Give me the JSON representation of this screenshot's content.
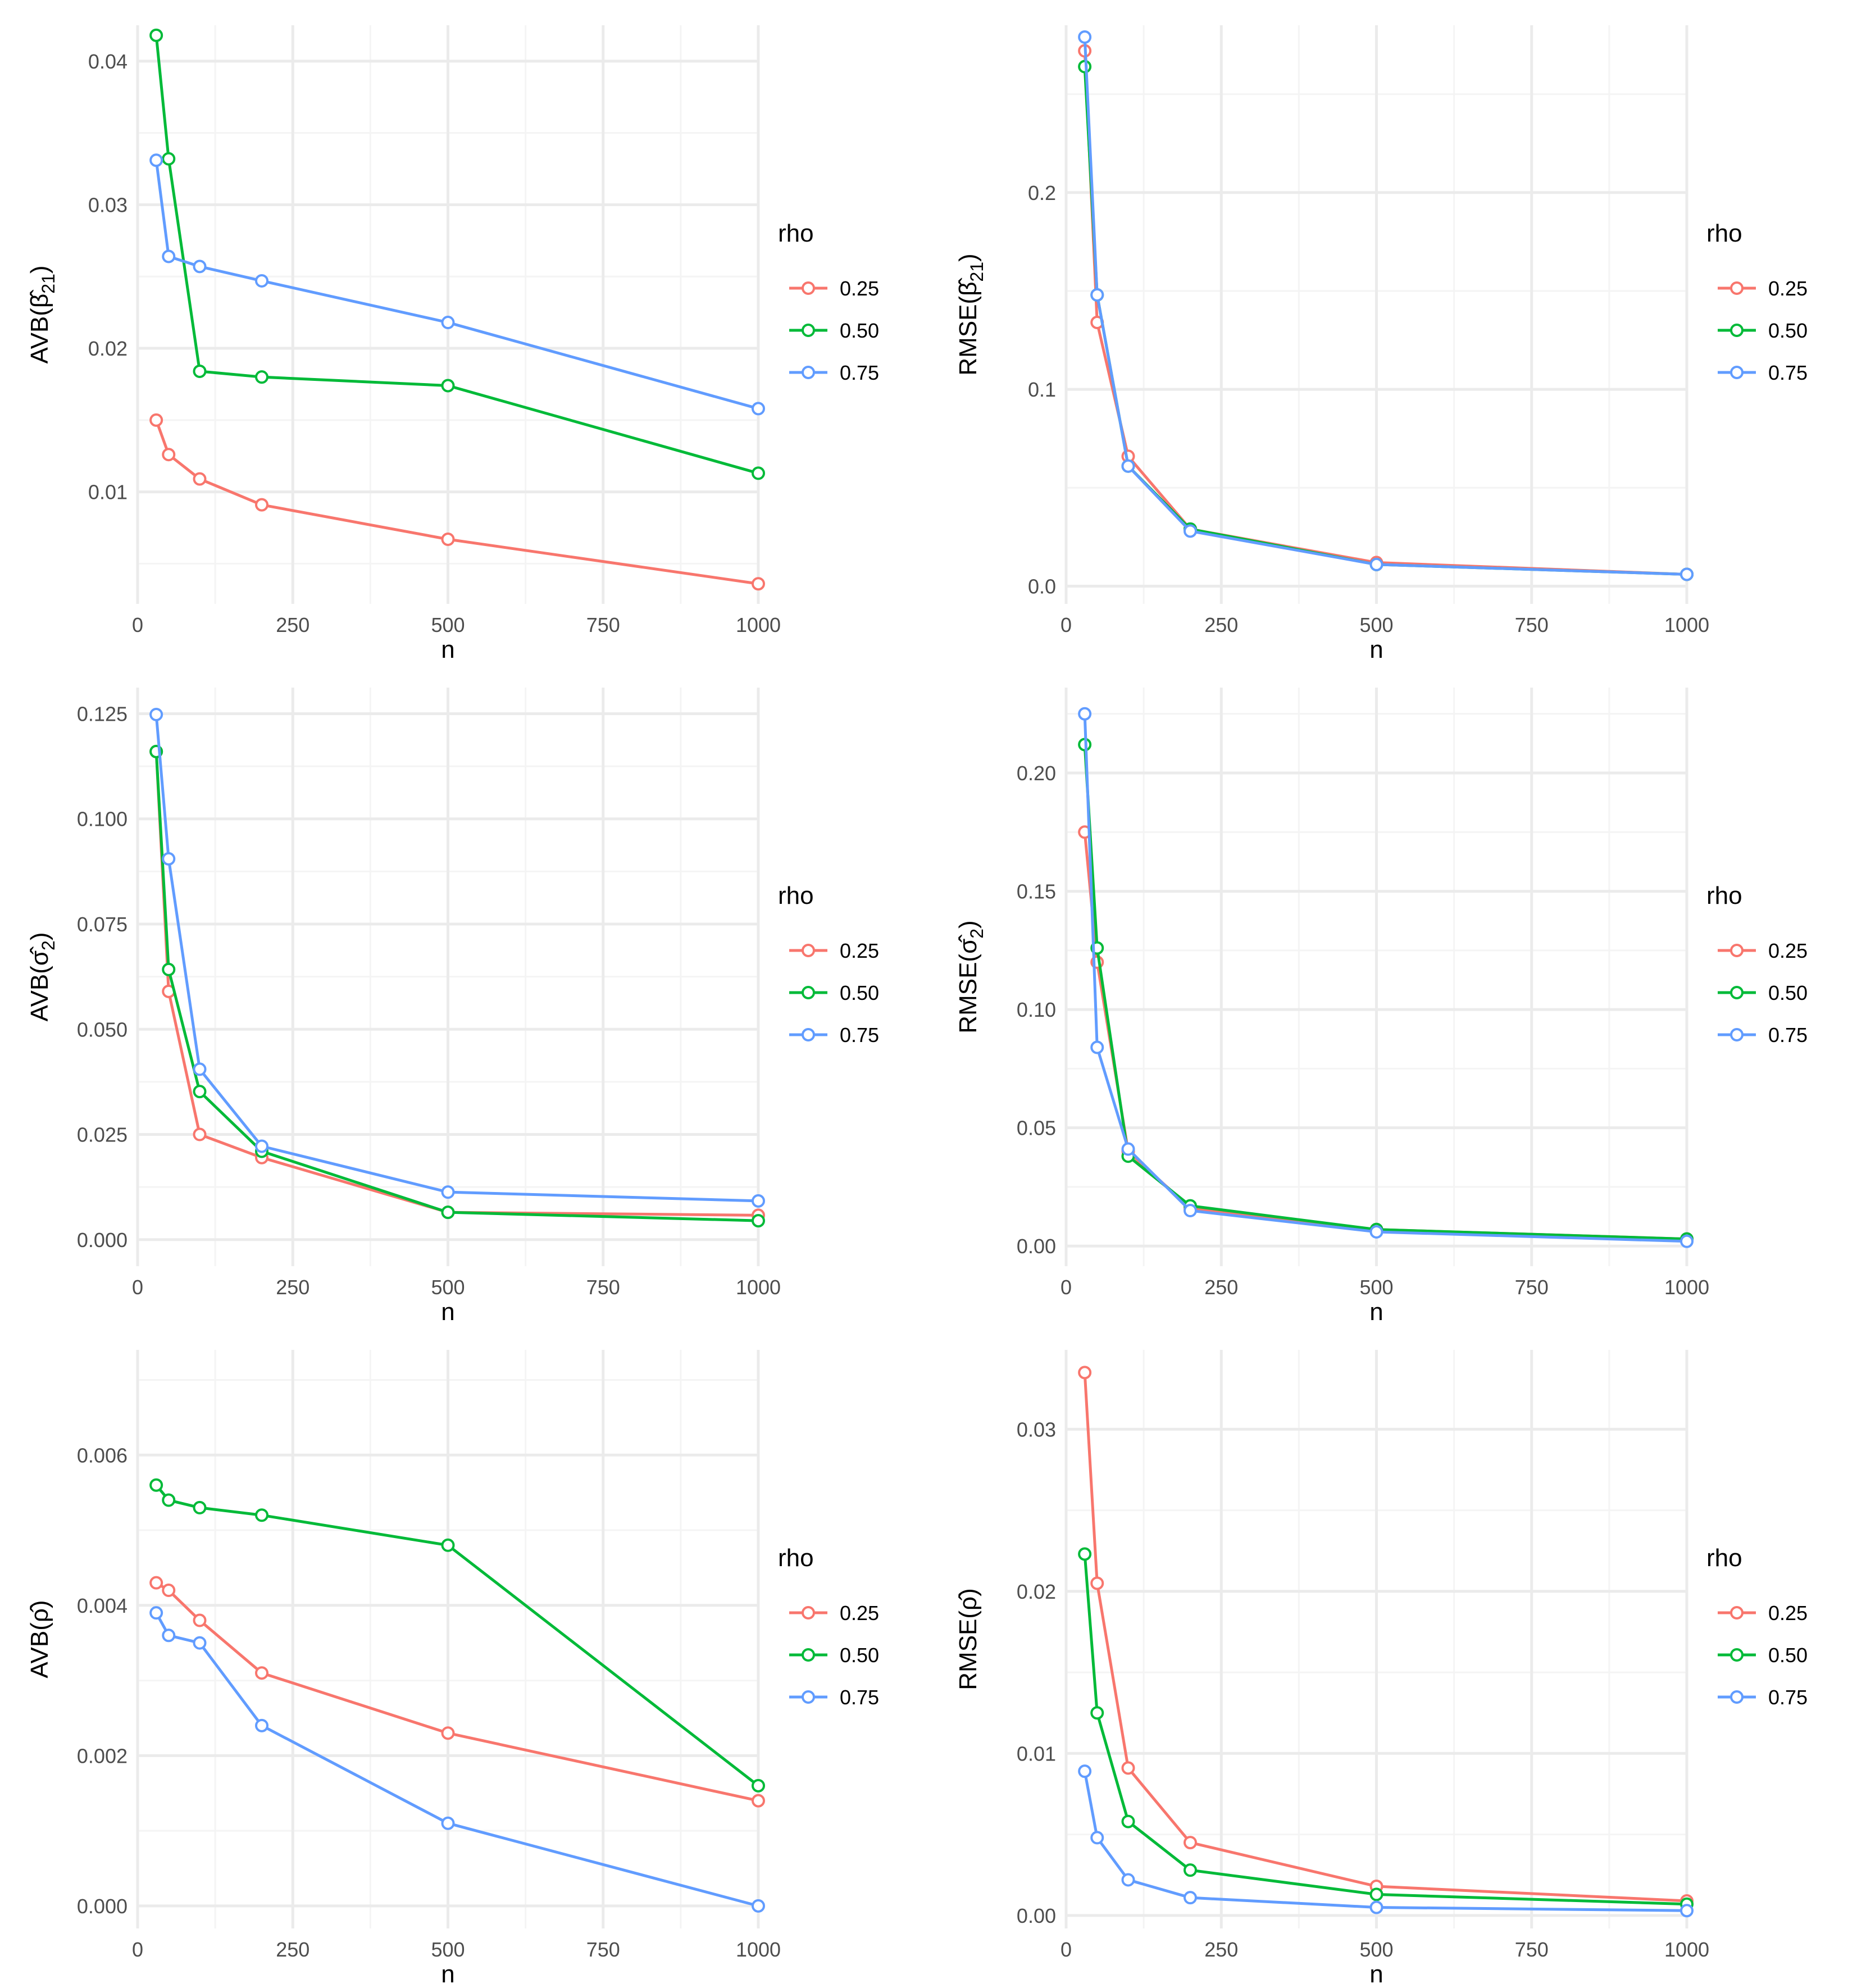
{
  "chart_data": [
    {
      "type": "line",
      "title": "",
      "xlabel": "n",
      "ylabel": "AVB(β̂21)",
      "ylabel_parts": {
        "func": "AVB",
        "sym": "β",
        "sub": "21"
      },
      "xlim": [
        0,
        1000
      ],
      "ylim": [
        0.0022,
        0.0425
      ],
      "xticks": [
        0,
        250,
        500,
        750,
        1000
      ],
      "xtick_labels": [
        "0",
        "250",
        "500",
        "750",
        "1000"
      ],
      "yticks": [
        0.01,
        0.02,
        0.03,
        0.04
      ],
      "ytick_labels": [
        "0.01",
        "0.02",
        "0.03",
        "0.04"
      ],
      "grid": true,
      "legend": {
        "title": "rho",
        "position": "right"
      },
      "x": [
        30,
        50,
        100,
        200,
        500,
        1000
      ],
      "series": [
        {
          "name": "0.25",
          "color": "#F8766D",
          "values": [
            0.015,
            0.0126,
            0.0109,
            0.0091,
            0.0067,
            0.0036
          ]
        },
        {
          "name": "0.50",
          "color": "#00BA38",
          "values": [
            0.0418,
            0.0332,
            0.0184,
            0.018,
            0.0174,
            0.0113
          ]
        },
        {
          "name": "0.75",
          "color": "#619CFF",
          "values": [
            0.0331,
            0.0264,
            0.0257,
            0.0247,
            0.0218,
            0.0158
          ]
        }
      ]
    },
    {
      "type": "line",
      "title": "",
      "xlabel": "n",
      "ylabel": "RMSE(β̂21)",
      "ylabel_parts": {
        "func": "RMSE",
        "sym": "β",
        "sub": "21"
      },
      "xlim": [
        0,
        1000
      ],
      "ylim": [
        -0.009,
        0.285
      ],
      "xticks": [
        0,
        250,
        500,
        750,
        1000
      ],
      "xtick_labels": [
        "0",
        "250",
        "500",
        "750",
        "1000"
      ],
      "yticks": [
        0.0,
        0.1,
        0.2
      ],
      "ytick_labels": [
        "0.0",
        "0.1",
        "0.2"
      ],
      "grid": true,
      "legend": {
        "title": "rho",
        "position": "right"
      },
      "x": [
        30,
        50,
        100,
        200,
        500,
        1000
      ],
      "series": [
        {
          "name": "0.25",
          "color": "#F8766D",
          "values": [
            0.272,
            0.134,
            0.066,
            0.029,
            0.012,
            0.006
          ]
        },
        {
          "name": "0.50",
          "color": "#00BA38",
          "values": [
            0.264,
            0.148,
            0.061,
            0.029,
            0.011,
            0.006
          ]
        },
        {
          "name": "0.75",
          "color": "#619CFF",
          "values": [
            0.279,
            0.148,
            0.061,
            0.028,
            0.011,
            0.006
          ]
        }
      ]
    },
    {
      "type": "line",
      "title": "",
      "xlabel": "n",
      "ylabel": "AVB(σ̂2)",
      "ylabel_parts": {
        "func": "AVB",
        "sym": "σ",
        "sub": "2"
      },
      "xlim": [
        0,
        1000
      ],
      "ylim": [
        -0.0063,
        0.1312
      ],
      "xticks": [
        0,
        250,
        500,
        750,
        1000
      ],
      "xtick_labels": [
        "0",
        "250",
        "500",
        "750",
        "1000"
      ],
      "yticks": [
        0.0,
        0.025,
        0.05,
        0.075,
        0.1,
        0.125
      ],
      "ytick_labels": [
        "0.000",
        "0.025",
        "0.050",
        "0.075",
        "0.100",
        "0.125"
      ],
      "grid": true,
      "legend": {
        "title": "rho",
        "position": "right"
      },
      "x": [
        30,
        50,
        100,
        200,
        500,
        1000
      ],
      "series": [
        {
          "name": "0.25",
          "color": "#F8766D",
          "values": [
            0.116,
            0.059,
            0.025,
            0.0195,
            0.0065,
            0.0058
          ]
        },
        {
          "name": "0.50",
          "color": "#00BA38",
          "values": [
            0.116,
            0.0642,
            0.0352,
            0.021,
            0.0065,
            0.0045
          ]
        },
        {
          "name": "0.75",
          "color": "#619CFF",
          "values": [
            0.1248,
            0.0905,
            0.0405,
            0.0222,
            0.0113,
            0.0092
          ]
        }
      ]
    },
    {
      "type": "line",
      "title": "",
      "xlabel": "n",
      "ylabel": "RMSE(σ̂2)",
      "ylabel_parts": {
        "func": "RMSE",
        "sym": "σ",
        "sub": "2"
      },
      "xlim": [
        0,
        1000
      ],
      "ylim": [
        -0.0085,
        0.2361
      ],
      "xticks": [
        0,
        250,
        500,
        750,
        1000
      ],
      "xtick_labels": [
        "0",
        "250",
        "500",
        "750",
        "1000"
      ],
      "yticks": [
        0.0,
        0.05,
        0.1,
        0.15,
        0.2
      ],
      "ytick_labels": [
        "0.00",
        "0.05",
        "0.10",
        "0.15",
        "0.20"
      ],
      "grid": true,
      "legend": {
        "title": "rho",
        "position": "right"
      },
      "x": [
        30,
        50,
        100,
        200,
        500,
        1000
      ],
      "series": [
        {
          "name": "0.25",
          "color": "#F8766D",
          "values": [
            0.175,
            0.12,
            0.04,
            0.016,
            0.007,
            0.003
          ]
        },
        {
          "name": "0.50",
          "color": "#00BA38",
          "values": [
            0.212,
            0.126,
            0.038,
            0.017,
            0.007,
            0.003
          ]
        },
        {
          "name": "0.75",
          "color": "#619CFF",
          "values": [
            0.225,
            0.084,
            0.041,
            0.015,
            0.006,
            0.002
          ]
        }
      ]
    },
    {
      "type": "line",
      "title": "",
      "xlabel": "n",
      "ylabel": "AVB(ρ̂)",
      "ylabel_parts": {
        "func": "AVB",
        "sym": "ρ",
        "sub": ""
      },
      "xlim": [
        0,
        1000
      ],
      "ylim": [
        -0.0003,
        0.0074
      ],
      "xticks": [
        0,
        250,
        500,
        750,
        1000
      ],
      "xtick_labels": [
        "0",
        "250",
        "500",
        "750",
        "1000"
      ],
      "yticks": [
        0.0,
        0.002,
        0.004,
        0.006
      ],
      "ytick_labels": [
        "0.000",
        "0.002",
        "0.004",
        "0.006"
      ],
      "grid": true,
      "legend": {
        "title": "rho",
        "position": "right"
      },
      "x": [
        30,
        50,
        100,
        200,
        500,
        1000
      ],
      "series": [
        {
          "name": "0.25",
          "color": "#F8766D",
          "values": [
            0.0043,
            0.0042,
            0.0038,
            0.0031,
            0.0023,
            0.0014
          ]
        },
        {
          "name": "0.50",
          "color": "#00BA38",
          "values": [
            0.0056,
            0.0054,
            0.0053,
            0.0052,
            0.0048,
            0.0016
          ]
        },
        {
          "name": "0.75",
          "color": "#619CFF",
          "values": [
            0.0039,
            0.0036,
            0.0035,
            0.0024,
            0.0011,
            0.0
          ]
        }
      ]
    },
    {
      "type": "line",
      "title": "",
      "xlabel": "n",
      "ylabel": "RMSE(ρ̂)",
      "ylabel_parts": {
        "func": "RMSE",
        "sym": "ρ",
        "sub": ""
      },
      "xlim": [
        0,
        1000
      ],
      "ylim": [
        -0.0008,
        0.0349
      ],
      "xticks": [
        0,
        250,
        500,
        750,
        1000
      ],
      "xtick_labels": [
        "0",
        "250",
        "500",
        "750",
        "1000"
      ],
      "yticks": [
        0.0,
        0.01,
        0.02,
        0.03
      ],
      "ytick_labels": [
        "0.00",
        "0.01",
        "0.02",
        "0.03"
      ],
      "grid": true,
      "legend": {
        "title": "rho",
        "position": "right"
      },
      "x": [
        30,
        50,
        100,
        200,
        500,
        1000
      ],
      "series": [
        {
          "name": "0.25",
          "color": "#F8766D",
          "values": [
            0.0335,
            0.0205,
            0.0091,
            0.0045,
            0.0018,
            0.0009
          ]
        },
        {
          "name": "0.50",
          "color": "#00BA38",
          "values": [
            0.0223,
            0.0125,
            0.0058,
            0.0028,
            0.0013,
            0.0007
          ]
        },
        {
          "name": "0.75",
          "color": "#619CFF",
          "values": [
            0.0089,
            0.0048,
            0.0022,
            0.0011,
            0.0005,
            0.0003
          ]
        }
      ]
    }
  ]
}
